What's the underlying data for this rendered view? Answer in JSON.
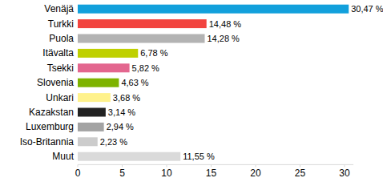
{
  "chart_data": {
    "type": "bar",
    "orientation": "horizontal",
    "categories": [
      "Venäjä",
      "Turkki",
      "Puola",
      "Itävalta",
      "Tsekki",
      "Slovenia",
      "Unkari",
      "Kazakstan",
      "Luxemburg",
      "Iso-Britannia",
      "Muut"
    ],
    "values": [
      30.47,
      14.48,
      14.28,
      6.78,
      5.82,
      4.63,
      3.68,
      3.14,
      2.94,
      2.23,
      11.55
    ],
    "value_labels": [
      "30,47 %",
      "14,48 %",
      "14,28 %",
      "6,78 %",
      "5,82 %",
      "4,63 %",
      "3,68 %",
      "3,14 %",
      "2,94 %",
      "2,23 %",
      "11,55 %"
    ],
    "colors": [
      "#12a0dc",
      "#f2443f",
      "#b3b3b3",
      "#bfd000",
      "#e3668f",
      "#7db300",
      "#fff28c",
      "#222222",
      "#a3a3a3",
      "#cccccc",
      "#dadada"
    ],
    "xlim": [
      0,
      31
    ],
    "xticks": [
      0,
      5,
      10,
      15,
      20,
      25,
      30
    ],
    "data_labels": true,
    "grid": false
  }
}
